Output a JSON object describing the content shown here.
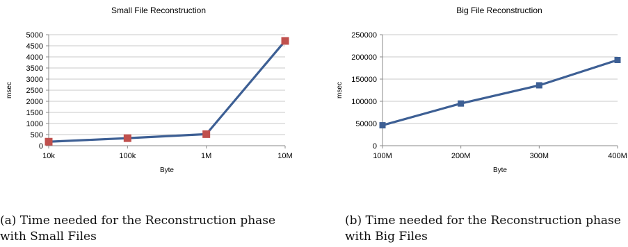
{
  "chart_data": [
    {
      "type": "line",
      "title": "Small File Reconstruction",
      "xlabel": "Byte",
      "ylabel": "msec",
      "categories": [
        "10k",
        "100k",
        "1M",
        "10M"
      ],
      "series": [
        {
          "values": [
            180,
            340,
            520,
            4720
          ]
        }
      ],
      "ylim": [
        0,
        5000
      ],
      "yticks": [
        "0",
        "500",
        "1000",
        "1500",
        "2000",
        "2500",
        "3000",
        "3500",
        "4000",
        "4500",
        "5000"
      ],
      "grid": true,
      "line_color": "#3d5f94",
      "marker_color": "#c0504d"
    },
    {
      "type": "line",
      "title": "Big File Reconstruction",
      "xlabel": "Byte",
      "ylabel": "msec",
      "categories": [
        "100M",
        "200M",
        "300M",
        "400M"
      ],
      "series": [
        {
          "values": [
            46000,
            95000,
            136000,
            193000
          ]
        }
      ],
      "ylim": [
        0,
        250000
      ],
      "yticks": [
        "0",
        "50000",
        "100000",
        "150000",
        "200000",
        "250000"
      ],
      "grid": true,
      "line_color": "#3d5f94",
      "marker_color": "#3d5f94"
    }
  ],
  "captions": {
    "a": "(a) Time needed for the Reconstruction phase with Small Files",
    "b": "(b) Time needed for the Reconstruction phase with Big Files"
  }
}
